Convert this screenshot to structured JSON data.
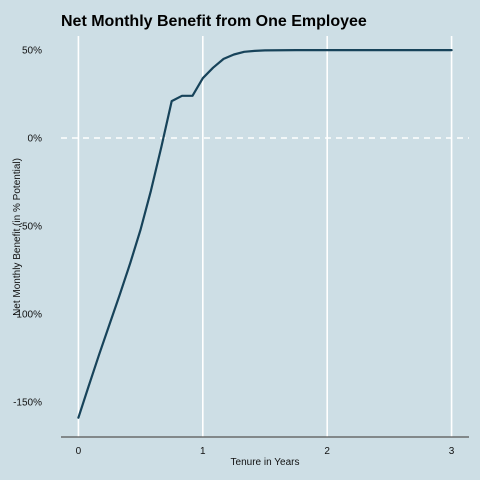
{
  "chart_data": {
    "type": "line",
    "title": "Net Monthly Benefit from One Employee",
    "xlabel": "Tenure in Years",
    "ylabel": "Net Monthly Benefit (in % Potential)",
    "xlim": [
      -0.14,
      3.14
    ],
    "ylim": [
      -170,
      58
    ],
    "x_ticks": [
      {
        "value": 0,
        "label": "0"
      },
      {
        "value": 1,
        "label": "1"
      },
      {
        "value": 2,
        "label": "2"
      },
      {
        "value": 3,
        "label": "3"
      }
    ],
    "y_ticks": [
      {
        "value": 50,
        "label": "50%"
      },
      {
        "value": 0,
        "label": "0%"
      },
      {
        "value": -50,
        "label": "-50%"
      },
      {
        "value": -100,
        "label": "-100%"
      },
      {
        "value": -150,
        "label": "-150%"
      }
    ],
    "grid": "vertical lines only",
    "reference_line": {
      "y": 0,
      "style": "dashed"
    },
    "series": [
      {
        "color": "#17435a",
        "x": [
          0,
          0.083,
          0.167,
          0.25,
          0.333,
          0.417,
          0.5,
          0.583,
          0.667,
          0.75,
          0.833,
          0.917,
          1.0,
          1.083,
          1.167,
          1.25,
          1.333,
          1.417,
          1.5,
          1.75,
          2.0,
          2.5,
          3.0
        ],
        "y": [
          -159,
          -141,
          -123,
          -106,
          -89,
          -71,
          -52,
          -30,
          -5,
          21,
          24,
          24,
          34,
          40,
          45,
          47.5,
          49,
          49.5,
          49.8,
          50,
          50,
          50,
          50
        ]
      }
    ]
  },
  "colors": {
    "background": "#cddee5",
    "gridline": "#ffffff",
    "line": "#17435a",
    "axis": "#555555"
  }
}
